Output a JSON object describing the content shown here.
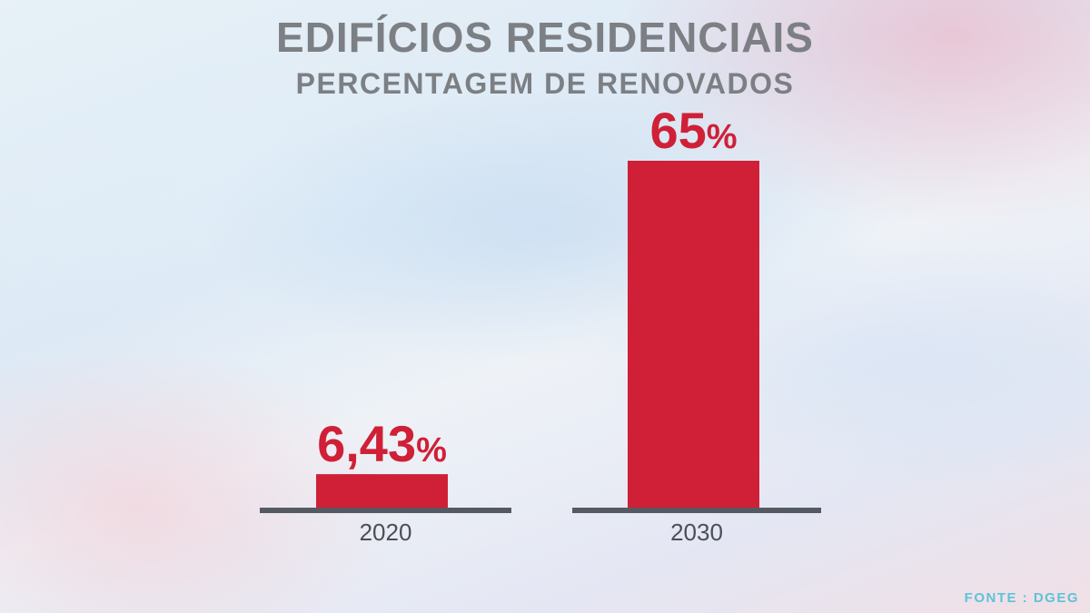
{
  "title": "EDIFÍCIOS RESIDENCIAIS",
  "subtitle": "PERCENTAGEM DE RENOVADOS",
  "source": "FONTE : DGEG",
  "colors": {
    "bar": "#cf2037",
    "value_text": "#cf2037",
    "baseline": "#555a62",
    "title_text": "#7c7f83",
    "source_text": "#5ec3d6"
  },
  "chart_data": {
    "type": "bar",
    "categories": [
      "2020",
      "2030"
    ],
    "values": [
      6.43,
      65
    ],
    "value_labels": [
      "6,43",
      "65"
    ],
    "unit": "%",
    "title": "EDIFÍCIOS RESIDENCIAIS",
    "subtitle": "PERCENTAGEM DE RENOVADOS",
    "xlabel": "",
    "ylabel": "",
    "ylim": [
      0,
      65
    ],
    "grid": false,
    "legend": "none"
  }
}
